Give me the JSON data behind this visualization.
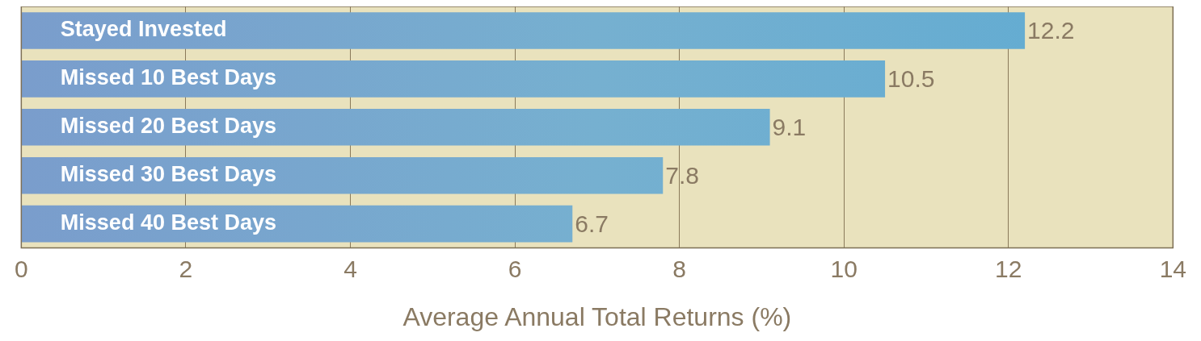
{
  "chart_data": {
    "type": "bar",
    "orientation": "horizontal",
    "xlabel": "Average Annual Total Returns (%)",
    "categories": [
      "Stayed Invested",
      "Missed 10 Best Days",
      "Missed 20 Best Days",
      "Missed 30 Best Days",
      "Missed 40 Best Days"
    ],
    "values": [
      12.2,
      10.5,
      9.1,
      7.8,
      6.7
    ],
    "color": "#5fabd2",
    "xlim": [
      0,
      14
    ],
    "xticks": [
      0,
      2,
      4,
      6,
      8,
      10,
      12,
      14
    ],
    "grid": "x",
    "data_labels": true,
    "legend": false
  }
}
